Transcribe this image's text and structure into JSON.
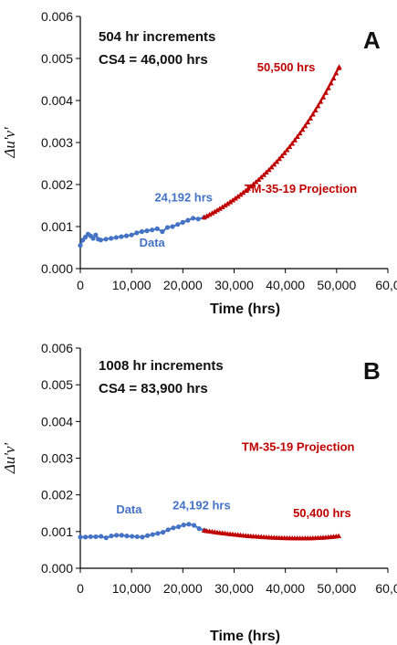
{
  "colors": {
    "data": "#4472C4",
    "projection": "#C00000",
    "axis": "#000000"
  },
  "chart_data": [
    {
      "type": "line",
      "panel_label": "A",
      "notes": [
        "504 hr increments",
        "CS4 = 46,000 hrs"
      ],
      "xlabel": "Time (hrs)",
      "ylabel": "Δu'v'",
      "xlim": [
        0,
        60000
      ],
      "ylim": [
        0,
        0.006
      ],
      "x_ticks": [
        "0",
        "10,000",
        "20,000",
        "30,000",
        "40,000",
        "50,000",
        "60,0"
      ],
      "y_ticks": [
        "0.000",
        "0.001",
        "0.002",
        "0.003",
        "0.004",
        "0.005",
        "0.006"
      ],
      "grid": false,
      "series": [
        {
          "name": "Data",
          "marker": "circle",
          "points": [
            [
              0,
              0.00055
            ],
            [
              500,
              0.00068
            ],
            [
              1000,
              0.00075
            ],
            [
              1500,
              0.00082
            ],
            [
              2000,
              0.00078
            ],
            [
              2500,
              0.00072
            ],
            [
              3000,
              0.0008
            ],
            [
              3500,
              0.0007
            ],
            [
              4000,
              0.00068
            ],
            [
              5000,
              0.0007
            ],
            [
              6000,
              0.00072
            ],
            [
              7000,
              0.00074
            ],
            [
              8000,
              0.00076
            ],
            [
              9000,
              0.00078
            ],
            [
              10000,
              0.0008
            ],
            [
              11000,
              0.00085
            ],
            [
              12000,
              0.00088
            ],
            [
              13000,
              0.0009
            ],
            [
              14000,
              0.00092
            ],
            [
              15000,
              0.00095
            ],
            [
              16000,
              0.00088
            ],
            [
              17000,
              0.00098
            ],
            [
              18000,
              0.001
            ],
            [
              19000,
              0.00105
            ],
            [
              20000,
              0.0011
            ],
            [
              21000,
              0.00115
            ],
            [
              22000,
              0.0012
            ],
            [
              23000,
              0.00118
            ],
            [
              24192,
              0.00122
            ]
          ]
        },
        {
          "name": "TM-35-19 Projection",
          "marker": "triangle",
          "fit": {
            "model": "exponential",
            "x_start": 24192,
            "x_end": 50500,
            "y_start": 0.00122,
            "y_end": 0.0048
          }
        }
      ],
      "annotations": [
        {
          "text": "Data",
          "x": 11500,
          "y": 0.00052,
          "color_key": "data"
        },
        {
          "text": "24,192 hrs",
          "x": 14500,
          "y": 0.0016,
          "color_key": "data"
        },
        {
          "text": "TM-35-19 Projection",
          "x": 32000,
          "y": 0.0018,
          "color_key": "projection"
        },
        {
          "text": "50,500 hrs",
          "x": 34500,
          "y": 0.0047,
          "color_key": "projection"
        }
      ]
    },
    {
      "type": "line",
      "panel_label": "B",
      "notes": [
        "1008 hr increments",
        "CS4 = 83,900 hrs"
      ],
      "xlabel": "Time (hrs)",
      "ylabel": "Δu'v'",
      "xlim": [
        0,
        60000
      ],
      "ylim": [
        0,
        0.006
      ],
      "x_ticks": [
        "0",
        "10,000",
        "20,000",
        "30,000",
        "40,000",
        "50,000",
        "60,0"
      ],
      "y_ticks": [
        "0.000",
        "0.001",
        "0.002",
        "0.003",
        "0.004",
        "0.005",
        "0.006"
      ],
      "grid": false,
      "series": [
        {
          "name": "Data",
          "marker": "circle",
          "points": [
            [
              0,
              0.00085
            ],
            [
              1008,
              0.00085
            ],
            [
              2016,
              0.00086
            ],
            [
              3024,
              0.00086
            ],
            [
              4032,
              0.00087
            ],
            [
              5040,
              0.00083
            ],
            [
              6048,
              0.00088
            ],
            [
              7056,
              0.0009
            ],
            [
              8064,
              0.0009
            ],
            [
              9072,
              0.00088
            ],
            [
              10080,
              0.00087
            ],
            [
              11088,
              0.00086
            ],
            [
              12096,
              0.00085
            ],
            [
              13104,
              0.00089
            ],
            [
              14112,
              0.00092
            ],
            [
              15120,
              0.00095
            ],
            [
              16128,
              0.00098
            ],
            [
              17136,
              0.00105
            ],
            [
              18144,
              0.0011
            ],
            [
              19152,
              0.00113
            ],
            [
              20160,
              0.00118
            ],
            [
              21168,
              0.0012
            ],
            [
              22176,
              0.00117
            ],
            [
              23184,
              0.00108
            ],
            [
              24192,
              0.00103
            ]
          ]
        },
        {
          "name": "TM-35-19 Projection",
          "marker": "triangle",
          "fit": {
            "model": "quadratic",
            "x_start": 24192,
            "x_end": 50400,
            "y_start": 0.00103,
            "y_min_x": 43500,
            "y_min": 0.00082,
            "y_end": 0.00088
          }
        }
      ],
      "annotations": [
        {
          "text": "Data",
          "x": 7000,
          "y": 0.0015,
          "color_key": "data"
        },
        {
          "text": "24,192 hrs",
          "x": 18000,
          "y": 0.0016,
          "color_key": "data"
        },
        {
          "text": "TM-35-19 Projection",
          "x": 31500,
          "y": 0.0032,
          "color_key": "projection"
        },
        {
          "text": "50,400 hrs",
          "x": 41500,
          "y": 0.0014,
          "color_key": "projection"
        }
      ]
    }
  ]
}
